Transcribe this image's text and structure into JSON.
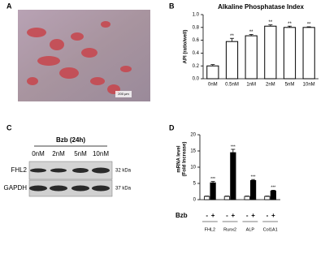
{
  "panels": {
    "a": "A",
    "b": "B",
    "c": "C",
    "d": "D"
  },
  "micrograph": {
    "scale_bar": "200 μm"
  },
  "blot": {
    "treatment": "Bzb (24h)",
    "lanes": [
      "0nM",
      "2nM",
      "5nM",
      "10nM"
    ],
    "rows": [
      {
        "name": "FHL2",
        "size": "32 kDa"
      },
      {
        "name": "GAPDH",
        "size": "37 kDa"
      }
    ]
  },
  "chart_data": [
    {
      "type": "bar",
      "title": "Alkaline Phosphatase Index",
      "y_label": "API (ratio/well)",
      "categories": [
        "0nM",
        "0.5nM",
        "1nM",
        "2nM",
        "5nM",
        "10nM"
      ],
      "values": [
        0.2,
        0.58,
        0.67,
        0.82,
        0.8,
        0.8
      ],
      "errors": [
        0.02,
        0.05,
        0.02,
        0.02,
        0.02,
        0.01
      ],
      "annotations": [
        null,
        "**",
        "**",
        "**",
        "**",
        "**"
      ],
      "color": "#ffffff",
      "edge_color": "#000000",
      "ylim": [
        0,
        1.0
      ],
      "yticks": [
        {
          "value": 0,
          "label": "0.0"
        },
        {
          "value": 0.2,
          "label": "0.2"
        },
        {
          "value": 0.4,
          "label": "0.4"
        },
        {
          "value": 0.6,
          "label": "0.6"
        },
        {
          "value": 0.8,
          "label": "0.8"
        },
        {
          "value": 1.0,
          "label": "1.0"
        }
      ]
    },
    {
      "type": "grouped_bar",
      "y_label": [
        "mRNA level",
        "(Fold Increase)"
      ],
      "group_label": "Bzb",
      "categories": [
        "FHL2",
        "Runx2",
        "ALP",
        "Col1A1"
      ],
      "series": [
        {
          "name": "-",
          "color": "#ffffff",
          "values": [
            1,
            1,
            1,
            1
          ],
          "errors": [
            0.1,
            0.1,
            0.1,
            0.1
          ]
        },
        {
          "name": "+",
          "color": "#000000",
          "values": [
            5.2,
            14.5,
            5.9,
            2.7
          ],
          "errors": [
            0.4,
            1.0,
            0.3,
            0.2
          ],
          "annotations": [
            "***",
            "***",
            "***",
            "***"
          ]
        }
      ],
      "edge_color": "#000000",
      "ylim": [
        0,
        20
      ],
      "yticks": [
        0,
        5,
        10,
        15,
        20
      ]
    }
  ]
}
